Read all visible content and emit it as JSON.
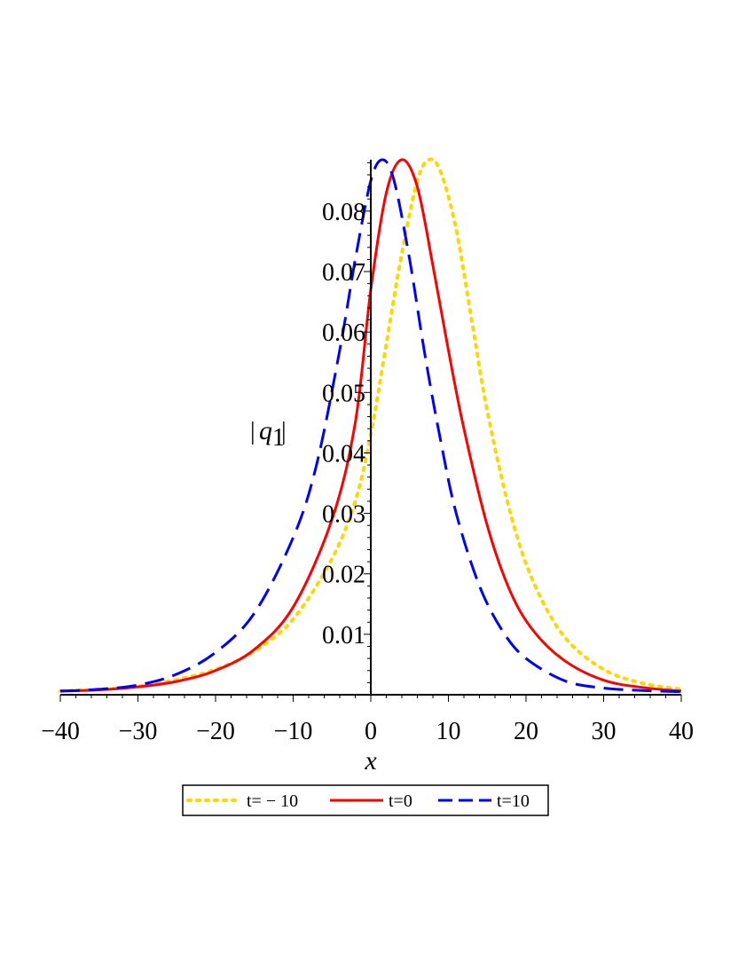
{
  "chart_data": {
    "type": "line",
    "title": "",
    "xlabel": "x",
    "ylabel": {
      "bar_left": "|",
      "var": "q",
      "sub": "1",
      "bar_right": "|"
    },
    "xlim": [
      -40,
      40
    ],
    "ylim": [
      0,
      0.0885
    ],
    "x_ticks": [
      {
        "value": -40,
        "label": "−40"
      },
      {
        "value": -30,
        "label": "−30"
      },
      {
        "value": -20,
        "label": "−20"
      },
      {
        "value": -10,
        "label": "−10"
      },
      {
        "value": 0,
        "label": "0"
      },
      {
        "value": 10,
        "label": "10"
      },
      {
        "value": 20,
        "label": "20"
      },
      {
        "value": 30,
        "label": "30"
      },
      {
        "value": 40,
        "label": "40"
      }
    ],
    "y_ticks": [
      {
        "value": 0.01,
        "label": "0.01"
      },
      {
        "value": 0.02,
        "label": "0.02"
      },
      {
        "value": 0.03,
        "label": "0.03"
      },
      {
        "value": 0.04,
        "label": "0.04"
      },
      {
        "value": 0.05,
        "label": "0.05"
      },
      {
        "value": 0.06,
        "label": "0.06"
      },
      {
        "value": 0.07,
        "label": "0.07"
      },
      {
        "value": 0.08,
        "label": "0.08"
      }
    ],
    "grid": false,
    "legend_position": "bottom",
    "series": [
      {
        "name": "t= − 10",
        "color": "#FFD700",
        "dash": "dotted",
        "x": [
          -40,
          -35,
          -30,
          -25,
          -20,
          -15,
          -10,
          -5,
          -2,
          0,
          2,
          4,
          6,
          7.5,
          9,
          11,
          13,
          15,
          18,
          21,
          25,
          30,
          35,
          40
        ],
        "y": [
          0.0006,
          0.0009,
          0.0014,
          0.0025,
          0.0042,
          0.0072,
          0.0125,
          0.0225,
          0.032,
          0.043,
          0.058,
          0.073,
          0.085,
          0.0885,
          0.0865,
          0.077,
          0.062,
          0.047,
          0.03,
          0.0185,
          0.0095,
          0.0042,
          0.0019,
          0.0009
        ]
      },
      {
        "name": "t=0",
        "color": "#FF0000",
        "dash": "solid",
        "x": [
          -40,
          -35,
          -30,
          -25,
          -20,
          -15,
          -10,
          -5,
          -2,
          0,
          2,
          4,
          6,
          8,
          10,
          12,
          15,
          18,
          21,
          25,
          30,
          35,
          40
        ],
        "y": [
          0.0006,
          0.0008,
          0.0013,
          0.0022,
          0.004,
          0.0075,
          0.0145,
          0.029,
          0.045,
          0.067,
          0.083,
          0.0885,
          0.084,
          0.071,
          0.057,
          0.044,
          0.028,
          0.017,
          0.0105,
          0.0056,
          0.0024,
          0.0012,
          0.0006
        ]
      },
      {
        "name": "t=10",
        "color": "#0000FF",
        "dash": "dashed",
        "x": [
          -40,
          -35,
          -30,
          -25,
          -20,
          -15,
          -10,
          -7,
          -4,
          -2,
          0,
          1.5,
          3,
          5,
          7,
          9,
          11,
          14,
          17,
          20,
          25,
          30,
          35,
          40
        ],
        "y": [
          0.0006,
          0.0009,
          0.0016,
          0.0034,
          0.007,
          0.0135,
          0.026,
          0.038,
          0.057,
          0.072,
          0.085,
          0.0885,
          0.085,
          0.072,
          0.056,
          0.042,
          0.03,
          0.018,
          0.0105,
          0.006,
          0.0023,
          0.0011,
          0.0007,
          0.0005
        ]
      }
    ]
  }
}
